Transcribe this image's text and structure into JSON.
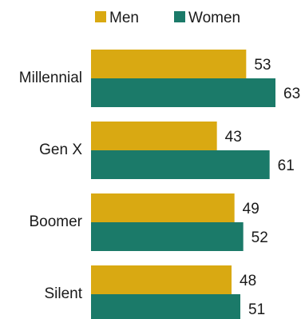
{
  "chart_data": {
    "type": "bar",
    "orientation": "horizontal",
    "categories": [
      "Millennial",
      "Gen X",
      "Boomer",
      "Silent"
    ],
    "series": [
      {
        "name": "Men",
        "values": [
          53,
          43,
          49,
          48
        ],
        "color": "#D9A912"
      },
      {
        "name": "Women",
        "values": [
          63,
          61,
          52,
          51
        ],
        "color": "#1B7A69"
      }
    ],
    "title": "",
    "xlabel": "",
    "ylabel": "",
    "xlim": [
      0,
      63
    ],
    "grid": false,
    "legend": "top-center"
  }
}
